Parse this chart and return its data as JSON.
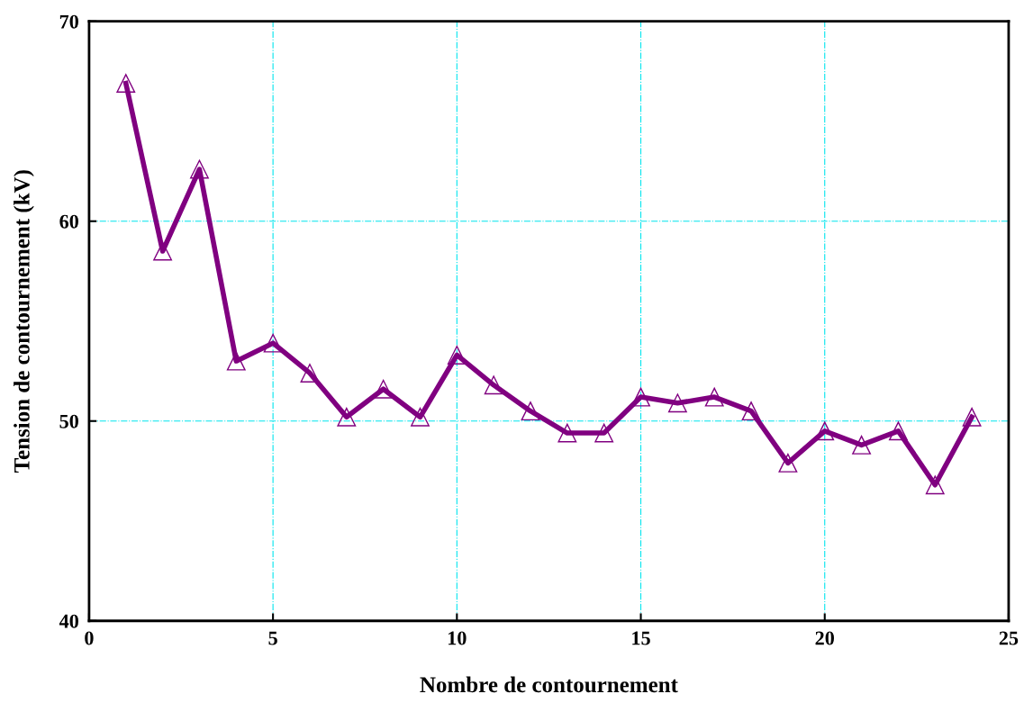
{
  "chart_data": {
    "type": "line",
    "xlabel": "Nombre de contournement",
    "ylabel": "Tension de contournement (kV)",
    "x": [
      1,
      2,
      3,
      4,
      5,
      6,
      7,
      8,
      9,
      10,
      11,
      12,
      13,
      14,
      15,
      16,
      17,
      18,
      19,
      20,
      21,
      22,
      23,
      24
    ],
    "series": [
      {
        "color": "#800080",
        "values": [
          66.9,
          58.5,
          62.6,
          53.0,
          53.9,
          52.4,
          50.2,
          51.6,
          50.2,
          53.3,
          51.8,
          50.5,
          49.4,
          49.4,
          51.2,
          50.9,
          51.2,
          50.5,
          47.9,
          49.5,
          48.8,
          49.5,
          46.8,
          50.2
        ]
      }
    ],
    "xlim": [
      0,
      25
    ],
    "xticks": [
      0,
      5,
      10,
      15,
      20,
      25
    ],
    "ylim": [
      40,
      70
    ],
    "yticks": [
      40,
      50,
      60,
      70
    ],
    "grid": true,
    "marker": "triangle",
    "line_style": "solid"
  }
}
